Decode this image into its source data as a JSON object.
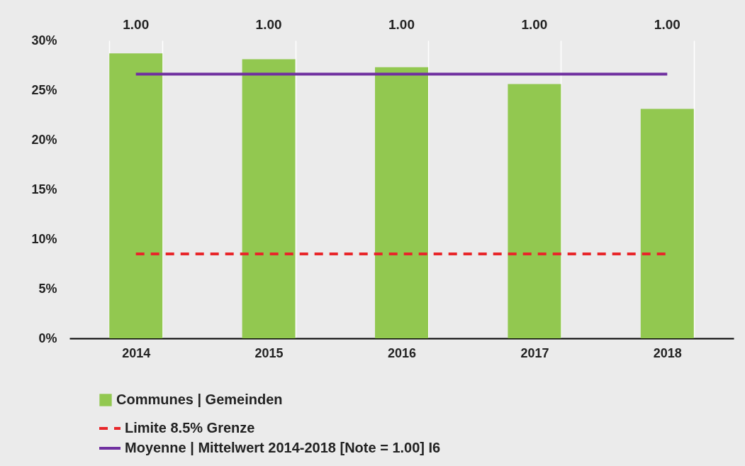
{
  "chart_data": {
    "type": "bar",
    "categories": [
      "2014",
      "2015",
      "2016",
      "2017",
      "2018"
    ],
    "series": [
      {
        "name": "Communes | Gemeinden",
        "color": "#92c850",
        "values": [
          28.7,
          28.1,
          27.3,
          25.6,
          23.1
        ]
      },
      {
        "type": "line",
        "name": "Limite 8.5% Grenze",
        "color": "#e8262a",
        "line_style": "dashed",
        "values": [
          8.5,
          8.5,
          8.5,
          8.5,
          8.5
        ]
      },
      {
        "type": "line",
        "name": "Moyenne | Mittelwert 2014-2018 [Note = 1.00] I6",
        "color": "#7030a0",
        "line_style": "solid",
        "values": [
          26.6,
          26.6,
          26.6,
          26.6,
          26.6
        ]
      }
    ],
    "ylim": [
      0,
      30
    ],
    "yticks": [
      {
        "value": 0,
        "label": "0%"
      },
      {
        "value": 5,
        "label": "5%"
      },
      {
        "value": 10,
        "label": "10%"
      },
      {
        "value": 15,
        "label": "15%"
      },
      {
        "value": 20,
        "label": "20%"
      },
      {
        "value": 25,
        "label": "25%"
      },
      {
        "value": 30,
        "label": "30%"
      }
    ],
    "annotations": [
      "1.00",
      "1.00",
      "1.00",
      "1.00",
      "1.00"
    ],
    "grid": "x",
    "legend": "bottom left"
  }
}
